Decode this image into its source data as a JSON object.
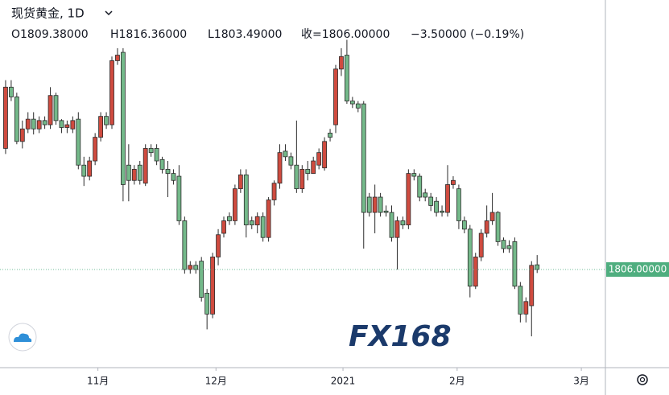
{
  "chart_data": {
    "type": "candlestick",
    "title": "现货黄金, 1D",
    "ohlc_header": [
      "O1809.38000",
      "H1816.36000",
      "L1803.49000",
      "收=1806.00000",
      "−3.50000 (−0.19%)"
    ],
    "watermark": "FX168",
    "up_color": "#cf4b3f",
    "down_color": "#74b98a",
    "border_color": "#2b2b2b",
    "ylim": [
      1735.5,
      1999.6
    ],
    "xlim": [
      -1,
      107.2
    ],
    "xticks": [
      {
        "value": 16.5,
        "label": "11月"
      },
      {
        "value": 37.6,
        "label": "12月"
      },
      {
        "value": 60.3,
        "label": "2021"
      },
      {
        "value": 80.7,
        "label": "2月"
      },
      {
        "value": 102.9,
        "label": "3月"
      }
    ],
    "price_line": {
      "value": 1806,
      "label": "1806.00000",
      "color": "#4fae7f"
    },
    "open": [
      1893,
      1937,
      1930,
      1898,
      1907,
      1914,
      1907,
      1913,
      1910,
      1931,
      1913,
      1908,
      1907,
      1914,
      1881,
      1873,
      1884,
      1901,
      1916,
      1910,
      1956,
      1962,
      1881,
      1870,
      1881,
      1868,
      1893,
      1893,
      1885,
      1878,
      1875,
      1873,
      1841,
      1806,
      1809,
      1812,
      1789,
      1774,
      1815,
      1832,
      1844,
      1841,
      1864,
      1874,
      1841,
      1838,
      1844,
      1829,
      1856,
      1868,
      1891,
      1887,
      1881,
      1864,
      1878,
      1875,
      1881,
      1879,
      1904,
      1910,
      1950,
      1960,
      1927,
      1925,
      1925,
      1858,
      1847,
      1858,
      1848,
      1847,
      1829,
      1841,
      1838,
      1875,
      1873,
      1861,
      1858,
      1855,
      1848,
      1847,
      1867,
      1864,
      1841,
      1835,
      1794,
      1815,
      1832,
      1841,
      1847,
      1827,
      1823,
      1826,
      1794,
      1774,
      1780,
      1809.38
    ],
    "high": [
      1942,
      1942,
      1933,
      1913,
      1919,
      1919,
      1916,
      1916,
      1937,
      1933,
      1914,
      1913,
      1916,
      1919,
      1887,
      1887,
      1904,
      1919,
      1919,
      1959,
      1965,
      1965,
      1896,
      1881,
      1884,
      1896,
      1896,
      1896,
      1887,
      1884,
      1878,
      1881,
      1844,
      1812,
      1812,
      1815,
      1792,
      1818,
      1835,
      1844,
      1847,
      1867,
      1878,
      1878,
      1844,
      1847,
      1847,
      1858,
      1870,
      1896,
      1896,
      1890,
      1913,
      1881,
      1884,
      1887,
      1893,
      1901,
      1907,
      1953,
      1965,
      1971,
      1930,
      1927,
      1927,
      1861,
      1867,
      1861,
      1852,
      1852,
      1844,
      1844,
      1878,
      1878,
      1875,
      1864,
      1861,
      1858,
      1852,
      1881,
      1873,
      1867,
      1844,
      1838,
      1818,
      1835,
      1852,
      1861,
      1848,
      1829,
      1827,
      1829,
      1797,
      1786,
      1812,
      1816.36
    ],
    "low": [
      1889,
      1927,
      1896,
      1893,
      1904,
      1903,
      1904,
      1907,
      1907,
      1910,
      1904,
      1904,
      1904,
      1878,
      1866,
      1870,
      1881,
      1898,
      1907,
      1907,
      1953,
      1855,
      1855,
      1867,
      1867,
      1866,
      1887,
      1881,
      1875,
      1858,
      1867,
      1838,
      1803,
      1803,
      1803,
      1783,
      1763,
      1771,
      1809,
      1829,
      1838,
      1838,
      1861,
      1829,
      1835,
      1832,
      1826,
      1826,
      1852,
      1864,
      1884,
      1878,
      1861,
      1861,
      1870,
      1875,
      1878,
      1877,
      1898,
      1904,
      1945,
      1925,
      1922,
      1919,
      1821,
      1844,
      1832,
      1844,
      1844,
      1826,
      1806,
      1835,
      1835,
      1870,
      1855,
      1855,
      1848,
      1844,
      1844,
      1844,
      1864,
      1835,
      1832,
      1786,
      1792,
      1812,
      1829,
      1838,
      1823,
      1818,
      1818,
      1792,
      1768,
      1768,
      1758,
      1803.49
    ],
    "close": [
      1937,
      1930,
      1898,
      1907,
      1914,
      1907,
      1913,
      1910,
      1931,
      1913,
      1908,
      1910,
      1913,
      1881,
      1873,
      1884,
      1901,
      1916,
      1910,
      1956,
      1960,
      1867,
      1870,
      1878,
      1870,
      1893,
      1890,
      1884,
      1878,
      1875,
      1870,
      1841,
      1806,
      1809,
      1806,
      1786,
      1774,
      1815,
      1831,
      1841,
      1841,
      1864,
      1874,
      1838,
      1838,
      1844,
      1829,
      1856,
      1868,
      1890,
      1887,
      1881,
      1864,
      1878,
      1875,
      1884,
      1890,
      1898,
      1901,
      1950,
      1959,
      1927,
      1925,
      1922,
      1847,
      1847,
      1858,
      1847,
      1847,
      1829,
      1841,
      1838,
      1875,
      1873,
      1858,
      1858,
      1852,
      1847,
      1847,
      1867,
      1870,
      1841,
      1835,
      1794,
      1815,
      1832,
      1841,
      1847,
      1826,
      1821,
      1821,
      1794,
      1774,
      1783,
      1809,
      1806
    ]
  }
}
